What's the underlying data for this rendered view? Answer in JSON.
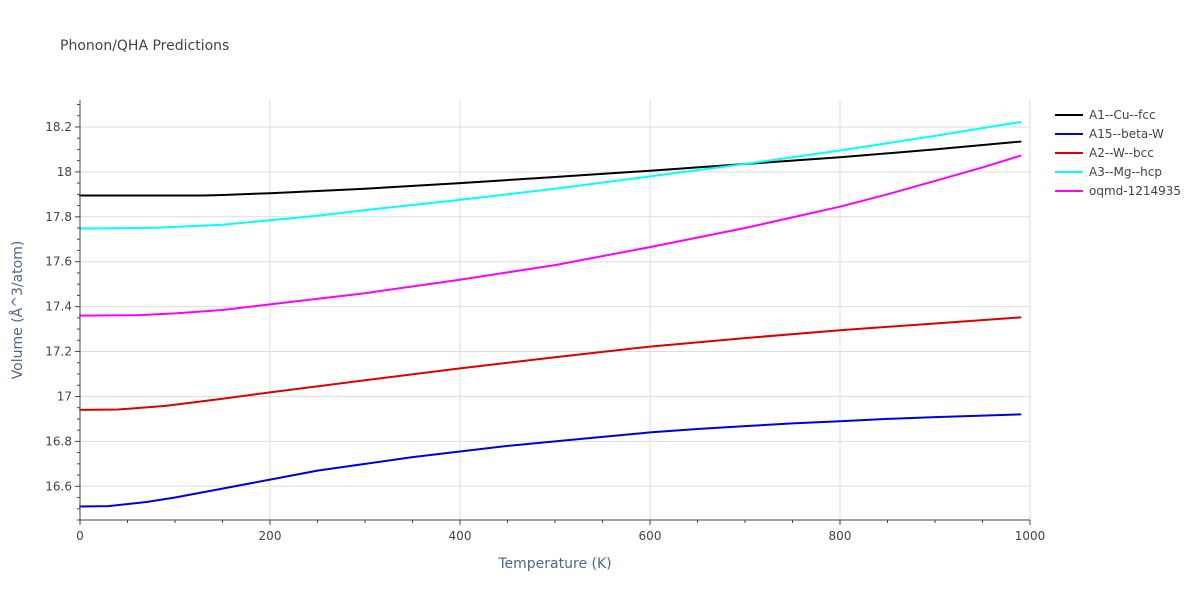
{
  "chart_data": {
    "type": "line",
    "title": "Phonon/QHA Predictions",
    "xlabel": "Temperature (K)",
    "ylabel": "Volume (Å^3/atom)",
    "xlim": [
      0,
      1000
    ],
    "ylim": [
      16.45,
      18.32
    ],
    "x_ticks": [
      0,
      200,
      400,
      600,
      800,
      1000
    ],
    "x_tick_labels": [
      "0",
      "200",
      "400",
      "600",
      "800",
      "1000"
    ],
    "y_ticks": [
      16.6,
      16.8,
      17.0,
      17.2,
      17.4,
      17.6,
      17.8,
      18.0,
      18.2
    ],
    "y_tick_labels": [
      "16.6",
      "16.8",
      "17",
      "17.2",
      "17.4",
      "17.6",
      "17.8",
      "18",
      "18.2"
    ],
    "grid": true,
    "legend_position": "top-right",
    "series": [
      {
        "name": "A1--Cu--fcc",
        "color": "#000000",
        "x": [
          0,
          50,
          100,
          130,
          150,
          200,
          300,
          400,
          500,
          600,
          700,
          800,
          900,
          990
        ],
        "y": [
          17.895,
          17.895,
          17.895,
          17.895,
          17.897,
          17.905,
          17.925,
          17.95,
          17.977,
          18.005,
          18.035,
          18.065,
          18.1,
          18.135
        ]
      },
      {
        "name": "A15--beta-W",
        "color": "#0000dd",
        "x": [
          0,
          30,
          70,
          100,
          150,
          200,
          250,
          300,
          350,
          400,
          450,
          500,
          550,
          600,
          650,
          700,
          750,
          800,
          850,
          900,
          950,
          990
        ],
        "y": [
          16.51,
          16.512,
          16.53,
          16.55,
          16.59,
          16.63,
          16.67,
          16.7,
          16.73,
          16.755,
          16.78,
          16.8,
          16.82,
          16.84,
          16.855,
          16.868,
          16.88,
          16.89,
          16.9,
          16.908,
          16.915,
          16.92
        ]
      },
      {
        "name": "A2--W--bcc",
        "color": "#dd0000",
        "x": [
          0,
          40,
          90,
          150,
          200,
          300,
          400,
          500,
          600,
          700,
          800,
          900,
          990
        ],
        "y": [
          16.94,
          16.942,
          16.958,
          16.99,
          17.018,
          17.072,
          17.125,
          17.175,
          17.222,
          17.26,
          17.295,
          17.325,
          17.352
        ]
      },
      {
        "name": "A3--Mg--hcp",
        "color": "#00ffff",
        "x": [
          0,
          40,
          80,
          150,
          200,
          250,
          300,
          400,
          500,
          600,
          700,
          800,
          900,
          990
        ],
        "y": [
          17.748,
          17.749,
          17.751,
          17.765,
          17.785,
          17.805,
          17.83,
          17.875,
          17.925,
          17.98,
          18.035,
          18.095,
          18.16,
          18.222
        ]
      },
      {
        "name": "oqmd-1214935",
        "color": "#ff00ff",
        "x": [
          0,
          60,
          100,
          150,
          200,
          300,
          400,
          500,
          600,
          700,
          800,
          850,
          900,
          950,
          990
        ],
        "y": [
          17.36,
          17.362,
          17.37,
          17.385,
          17.41,
          17.46,
          17.52,
          17.585,
          17.665,
          17.75,
          17.845,
          17.9,
          17.96,
          18.02,
          18.072
        ]
      }
    ]
  }
}
